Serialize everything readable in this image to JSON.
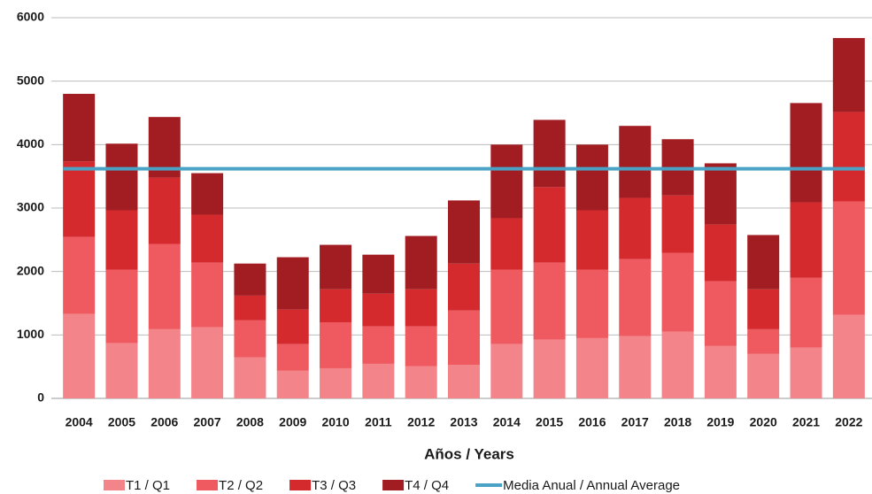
{
  "chart_data": {
    "type": "bar",
    "stacked": true,
    "x_label": "Años / Years",
    "categories": [
      "2004",
      "2005",
      "2006",
      "2007",
      "2008",
      "2009",
      "2010",
      "2011",
      "2012",
      "2013",
      "2014",
      "2015",
      "2016",
      "2017",
      "2018",
      "2019",
      "2020",
      "2021",
      "2022"
    ],
    "series": [
      {
        "name": "T1 / Q1",
        "color": "#f2848a",
        "values": [
          1330,
          870,
          1090,
          1120,
          645,
          435,
          475,
          545,
          505,
          530,
          855,
          925,
          950,
          980,
          1050,
          825,
          700,
          800,
          1315
        ]
      },
      {
        "name": "T2 / Q2",
        "color": "#ee5a5f",
        "values": [
          1215,
          1160,
          1345,
          1020,
          585,
          420,
          725,
          590,
          630,
          855,
          1175,
          1215,
          1080,
          1215,
          1245,
          1020,
          390,
          1100,
          1790
        ]
      },
      {
        "name": "T3 / Q3",
        "color": "#d42a2e",
        "values": [
          1190,
          935,
          1045,
          755,
          390,
          545,
          520,
          515,
          585,
          740,
          810,
          1190,
          935,
          965,
          905,
          895,
          630,
          1190,
          1410
        ]
      },
      {
        "name": "T4 / Q4",
        "color": "#a11d22",
        "values": [
          1065,
          1050,
          955,
          655,
          505,
          825,
          700,
          615,
          840,
          995,
          1160,
          1060,
          1035,
          1135,
          885,
          965,
          855,
          1565,
          1165
        ]
      }
    ],
    "average": {
      "name": "Media Anual / Annual Average",
      "color": "#4aa3c4",
      "value": 3620
    },
    "ylim": [
      0,
      6000
    ],
    "yticks": [
      0,
      1000,
      2000,
      3000,
      4000,
      5000,
      6000
    ],
    "grid": true
  }
}
